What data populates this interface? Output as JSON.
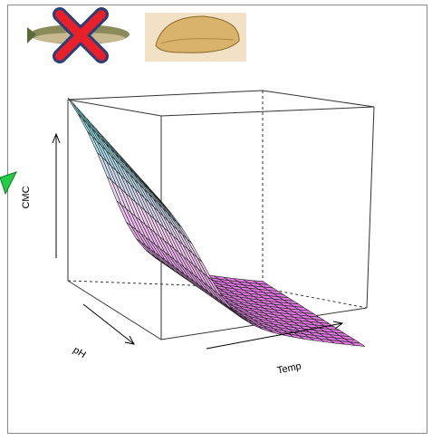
{
  "figure": {
    "axes": {
      "z_label": "CMC",
      "x_label": "pH",
      "y_label": "Temp"
    }
  }
}
